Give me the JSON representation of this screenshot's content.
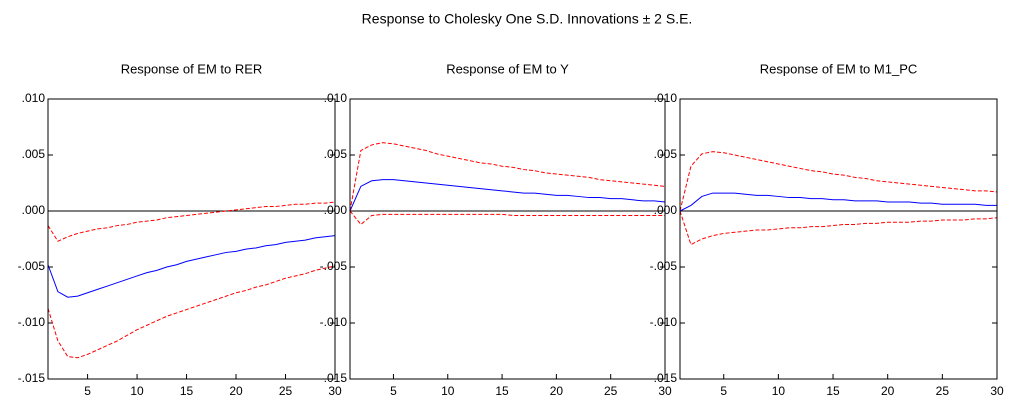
{
  "title": "Response to Cholesky One S.D. Innovations ± 2 S.E.",
  "chart_data": [
    {
      "type": "line",
      "title": "Response of EM to RER",
      "x": [
        1,
        2,
        3,
        4,
        5,
        6,
        7,
        8,
        9,
        10,
        11,
        12,
        13,
        14,
        15,
        16,
        17,
        18,
        19,
        20,
        21,
        22,
        23,
        24,
        25,
        26,
        27,
        28,
        29,
        30
      ],
      "xlim": [
        1,
        30
      ],
      "xticks": [
        5,
        10,
        15,
        20,
        25,
        30
      ],
      "ylim": [
        -0.015,
        0.01
      ],
      "yticks": [
        {
          "value": -0.015,
          "label": "-.015"
        },
        {
          "value": -0.01,
          "label": "-.010"
        },
        {
          "value": -0.005,
          "label": "-.005"
        },
        {
          "value": 0,
          "label": ".000"
        },
        {
          "value": 0.005,
          "label": ".005"
        },
        {
          "value": 0.01,
          "label": ".010"
        }
      ],
      "zero_line": true,
      "series": [
        {
          "color": "#0000ff",
          "dashed": false,
          "values": [
            -0.0048,
            -0.0072,
            -0.0077,
            -0.0076,
            -0.0073,
            -0.007,
            -0.0067,
            -0.0064,
            -0.0061,
            -0.0058,
            -0.0055,
            -0.0053,
            -0.005,
            -0.0048,
            -0.0045,
            -0.0043,
            -0.0041,
            -0.0039,
            -0.0037,
            -0.0036,
            -0.0034,
            -0.0033,
            -0.0031,
            -0.003,
            -0.0028,
            -0.0027,
            -0.0026,
            -0.0024,
            -0.0023,
            -0.0022
          ]
        },
        {
          "color": "#ff0000",
          "dashed": true,
          "values": [
            -0.0013,
            -0.0027,
            -0.0023,
            -0.002,
            -0.0018,
            -0.0016,
            -0.0015,
            -0.0013,
            -0.0012,
            -0.001,
            -0.0009,
            -0.0008,
            -0.0006,
            -0.0005,
            -0.0004,
            -0.0003,
            -0.0002,
            -0.0001,
            0.0,
            0.0001,
            0.0002,
            0.0003,
            0.0004,
            0.0004,
            0.0005,
            0.0006,
            0.0006,
            0.0007,
            0.0007,
            0.0008
          ]
        },
        {
          "color": "#ff0000",
          "dashed": true,
          "values": [
            -0.0087,
            -0.0116,
            -0.013,
            -0.0131,
            -0.0128,
            -0.0124,
            -0.012,
            -0.0116,
            -0.0111,
            -0.0106,
            -0.0102,
            -0.0098,
            -0.0094,
            -0.0091,
            -0.0088,
            -0.0085,
            -0.0082,
            -0.0079,
            -0.0076,
            -0.0073,
            -0.0071,
            -0.0068,
            -0.0066,
            -0.0063,
            -0.006,
            -0.0058,
            -0.0056,
            -0.0053,
            -0.0051,
            -0.0049
          ]
        }
      ]
    },
    {
      "type": "line",
      "title": "Response of EM to Y",
      "x": [
        1,
        2,
        3,
        4,
        5,
        6,
        7,
        8,
        9,
        10,
        11,
        12,
        13,
        14,
        15,
        16,
        17,
        18,
        19,
        20,
        21,
        22,
        23,
        24,
        25,
        26,
        27,
        28,
        29,
        30
      ],
      "xlim": [
        1,
        30
      ],
      "xticks": [
        5,
        10,
        15,
        20,
        25,
        30
      ],
      "ylim": [
        -0.015,
        0.01
      ],
      "yticks": [
        {
          "value": -0.015,
          "label": "-.015"
        },
        {
          "value": -0.01,
          "label": "-.010"
        },
        {
          "value": -0.005,
          "label": "-.005"
        },
        {
          "value": 0,
          "label": ".000"
        },
        {
          "value": 0.005,
          "label": ".005"
        },
        {
          "value": 0.01,
          "label": ".010"
        }
      ],
      "zero_line": true,
      "series": [
        {
          "color": "#0000ff",
          "dashed": false,
          "values": [
            0,
            0.0022,
            0.0027,
            0.0028,
            0.0028,
            0.0027,
            0.0026,
            0.0025,
            0.0024,
            0.0023,
            0.0022,
            0.0021,
            0.002,
            0.0019,
            0.0018,
            0.0017,
            0.0016,
            0.0016,
            0.0015,
            0.0014,
            0.0014,
            0.0013,
            0.0012,
            0.0012,
            0.0011,
            0.0011,
            0.001,
            0.0009,
            0.0009,
            0.0008
          ]
        },
        {
          "color": "#ff0000",
          "dashed": true,
          "values": [
            0,
            0.0054,
            0.0059,
            0.0061,
            0.006,
            0.0058,
            0.0056,
            0.0054,
            0.0051,
            0.0049,
            0.0047,
            0.0045,
            0.0043,
            0.0042,
            0.004,
            0.0039,
            0.0037,
            0.0036,
            0.0034,
            0.0033,
            0.0032,
            0.0031,
            0.003,
            0.0028,
            0.0027,
            0.0026,
            0.0025,
            0.0024,
            0.0023,
            0.0022
          ]
        },
        {
          "color": "#ff0000",
          "dashed": true,
          "values": [
            0,
            -0.0012,
            -0.0004,
            -0.0003,
            -0.0003,
            -0.0003,
            -0.0003,
            -0.0003,
            -0.0003,
            -0.0003,
            -0.0003,
            -0.0003,
            -0.0003,
            -0.0003,
            -0.0003,
            -0.0004,
            -0.0004,
            -0.0004,
            -0.0004,
            -0.0004,
            -0.0004,
            -0.0004,
            -0.0004,
            -0.0004,
            -0.0004,
            -0.0004,
            -0.0004,
            -0.0004,
            -0.0004,
            -0.0004
          ]
        }
      ]
    },
    {
      "type": "line",
      "title": "Response of EM to M1_PC",
      "x": [
        1,
        2,
        3,
        4,
        5,
        6,
        7,
        8,
        9,
        10,
        11,
        12,
        13,
        14,
        15,
        16,
        17,
        18,
        19,
        20,
        21,
        22,
        23,
        24,
        25,
        26,
        27,
        28,
        29,
        30
      ],
      "xlim": [
        1,
        30
      ],
      "xticks": [
        5,
        10,
        15,
        20,
        25,
        30
      ],
      "ylim": [
        -0.015,
        0.01
      ],
      "yticks": [
        {
          "value": -0.015,
          "label": "-.015"
        },
        {
          "value": -0.01,
          "label": "-.010"
        },
        {
          "value": -0.005,
          "label": "-.005"
        },
        {
          "value": 0,
          "label": ".000"
        },
        {
          "value": 0.005,
          "label": ".005"
        },
        {
          "value": 0.01,
          "label": ".010"
        }
      ],
      "zero_line": true,
      "series": [
        {
          "color": "#0000ff",
          "dashed": false,
          "values": [
            0,
            0.0005,
            0.0013,
            0.0016,
            0.0016,
            0.0016,
            0.0015,
            0.0014,
            0.0014,
            0.0013,
            0.0012,
            0.0012,
            0.0011,
            0.0011,
            0.001,
            0.001,
            0.0009,
            0.0009,
            0.0009,
            0.0008,
            0.0008,
            0.0008,
            0.0007,
            0.0007,
            0.0006,
            0.0006,
            0.0006,
            0.0006,
            0.0005,
            0.0005
          ]
        },
        {
          "color": "#ff0000",
          "dashed": true,
          "values": [
            0,
            0.004,
            0.0051,
            0.0053,
            0.0052,
            0.005,
            0.0048,
            0.0046,
            0.0044,
            0.0042,
            0.004,
            0.0038,
            0.0036,
            0.0035,
            0.0033,
            0.0032,
            0.003,
            0.0029,
            0.0027,
            0.0026,
            0.0025,
            0.0024,
            0.0023,
            0.0022,
            0.0021,
            0.002,
            0.0019,
            0.0018,
            0.0018,
            0.0017
          ]
        },
        {
          "color": "#ff0000",
          "dashed": true,
          "values": [
            0,
            -0.003,
            -0.0025,
            -0.0022,
            -0.002,
            -0.0019,
            -0.0018,
            -0.0017,
            -0.0017,
            -0.0016,
            -0.0015,
            -0.0015,
            -0.0014,
            -0.0014,
            -0.0013,
            -0.0012,
            -0.0012,
            -0.0011,
            -0.0011,
            -0.001,
            -0.001,
            -0.001,
            -0.0009,
            -0.0009,
            -0.0008,
            -0.0008,
            -0.0008,
            -0.0007,
            -0.0007,
            -0.0006
          ]
        }
      ]
    }
  ]
}
